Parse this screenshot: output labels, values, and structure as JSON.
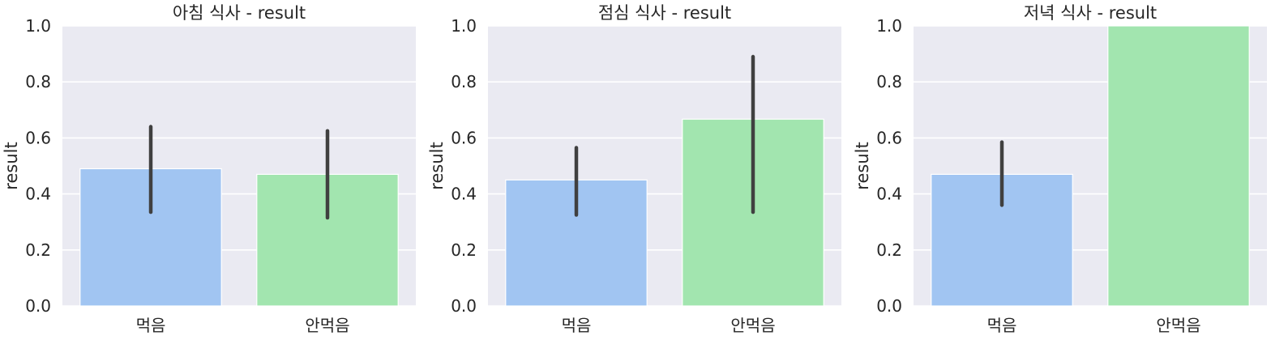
{
  "figure": {
    "style": {
      "panel_bg": "#EAEAF2",
      "grid": "#FFFFFF",
      "errorbar": "#404040"
    },
    "colors": [
      "#A1C5F2",
      "#A2E5AF"
    ],
    "yticks": [
      "0.0",
      "0.2",
      "0.4",
      "0.6",
      "0.8",
      "1.0"
    ]
  },
  "chart_data": [
    {
      "type": "bar",
      "title": "아침 식사 - result",
      "xlabel": "",
      "ylabel": "result",
      "ylim": [
        0,
        1
      ],
      "categories": [
        "먹음",
        "안먹음"
      ],
      "values": [
        0.49,
        0.47
      ],
      "error_low": [
        0.335,
        0.315
      ],
      "error_high": [
        0.64,
        0.625
      ]
    },
    {
      "type": "bar",
      "title": "점심 식사 - result",
      "xlabel": "",
      "ylabel": "result",
      "ylim": [
        0,
        1
      ],
      "categories": [
        "먹음",
        "안먹음"
      ],
      "values": [
        0.45,
        0.667
      ],
      "error_low": [
        0.325,
        0.335
      ],
      "error_high": [
        0.565,
        0.89
      ]
    },
    {
      "type": "bar",
      "title": "저녁 식사 - result",
      "xlabel": "",
      "ylabel": "result",
      "ylim": [
        0,
        1
      ],
      "categories": [
        "먹음",
        "안먹음"
      ],
      "values": [
        0.47,
        1.0
      ],
      "error_low": [
        0.36,
        1.0
      ],
      "error_high": [
        0.585,
        1.0
      ]
    }
  ]
}
